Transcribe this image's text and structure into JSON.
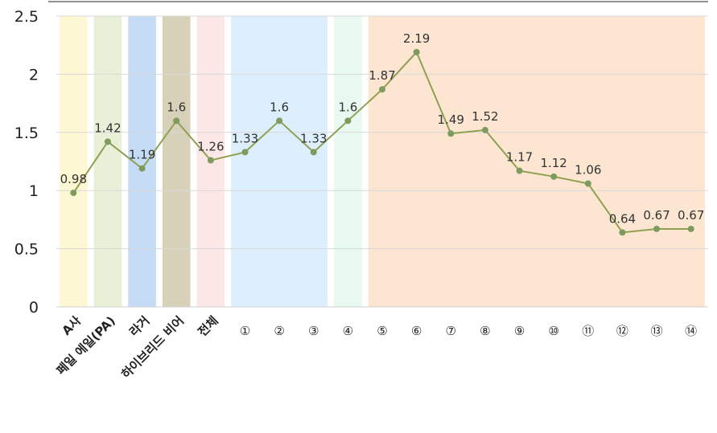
{
  "chart_data": {
    "type": "line",
    "categories": [
      "A사",
      "페일 에일(PA)",
      "라거",
      "하이브리드 비어",
      "전체",
      "①",
      "②",
      "③",
      "④",
      "⑤",
      "⑥",
      "⑦",
      "⑧",
      "⑨",
      "⑩",
      "⑪",
      "⑫",
      "⑬",
      "⑭"
    ],
    "values": [
      0.98,
      1.42,
      1.19,
      1.6,
      1.26,
      1.33,
      1.6,
      1.33,
      1.6,
      1.87,
      2.19,
      1.49,
      1.52,
      1.17,
      1.12,
      1.06,
      0.64,
      0.67,
      0.67
    ],
    "data_labels": [
      "0.98",
      "1.42",
      "1.19",
      "1.6",
      "1.26",
      "1.33",
      "1.6",
      "1.33",
      "1.6",
      "1.87",
      "2.19",
      "1.49",
      "1.52",
      "1.17",
      "1.12",
      "1.06",
      "0.64",
      "0.67",
      "0.67"
    ],
    "ylim": [
      0,
      2.5
    ],
    "yticks": [
      "0",
      "0.5",
      "1",
      "1.5",
      "2",
      "2.5"
    ],
    "ytick_values": [
      0,
      0.5,
      1,
      1.5,
      2,
      2.5
    ],
    "grid": true,
    "line_color": "#8fa052",
    "marker_color": "#7f9a5e",
    "bands": [
      {
        "from": 0,
        "to": 0,
        "color": "#fdf7d4"
      },
      {
        "from": 1,
        "to": 1,
        "color": "#e8f0d8"
      },
      {
        "from": 2,
        "to": 2,
        "color": "#c4dcf6"
      },
      {
        "from": 3,
        "to": 3,
        "color": "#d7d1b9"
      },
      {
        "from": 4,
        "to": 4,
        "color": "#fbe7e5"
      },
      {
        "from": 5,
        "to": 7,
        "color": "#ddeefc"
      },
      {
        "from": 8,
        "to": 8,
        "color": "#e8f9f2"
      },
      {
        "from": 9,
        "to": 18,
        "color": "#fde6d1"
      }
    ]
  }
}
